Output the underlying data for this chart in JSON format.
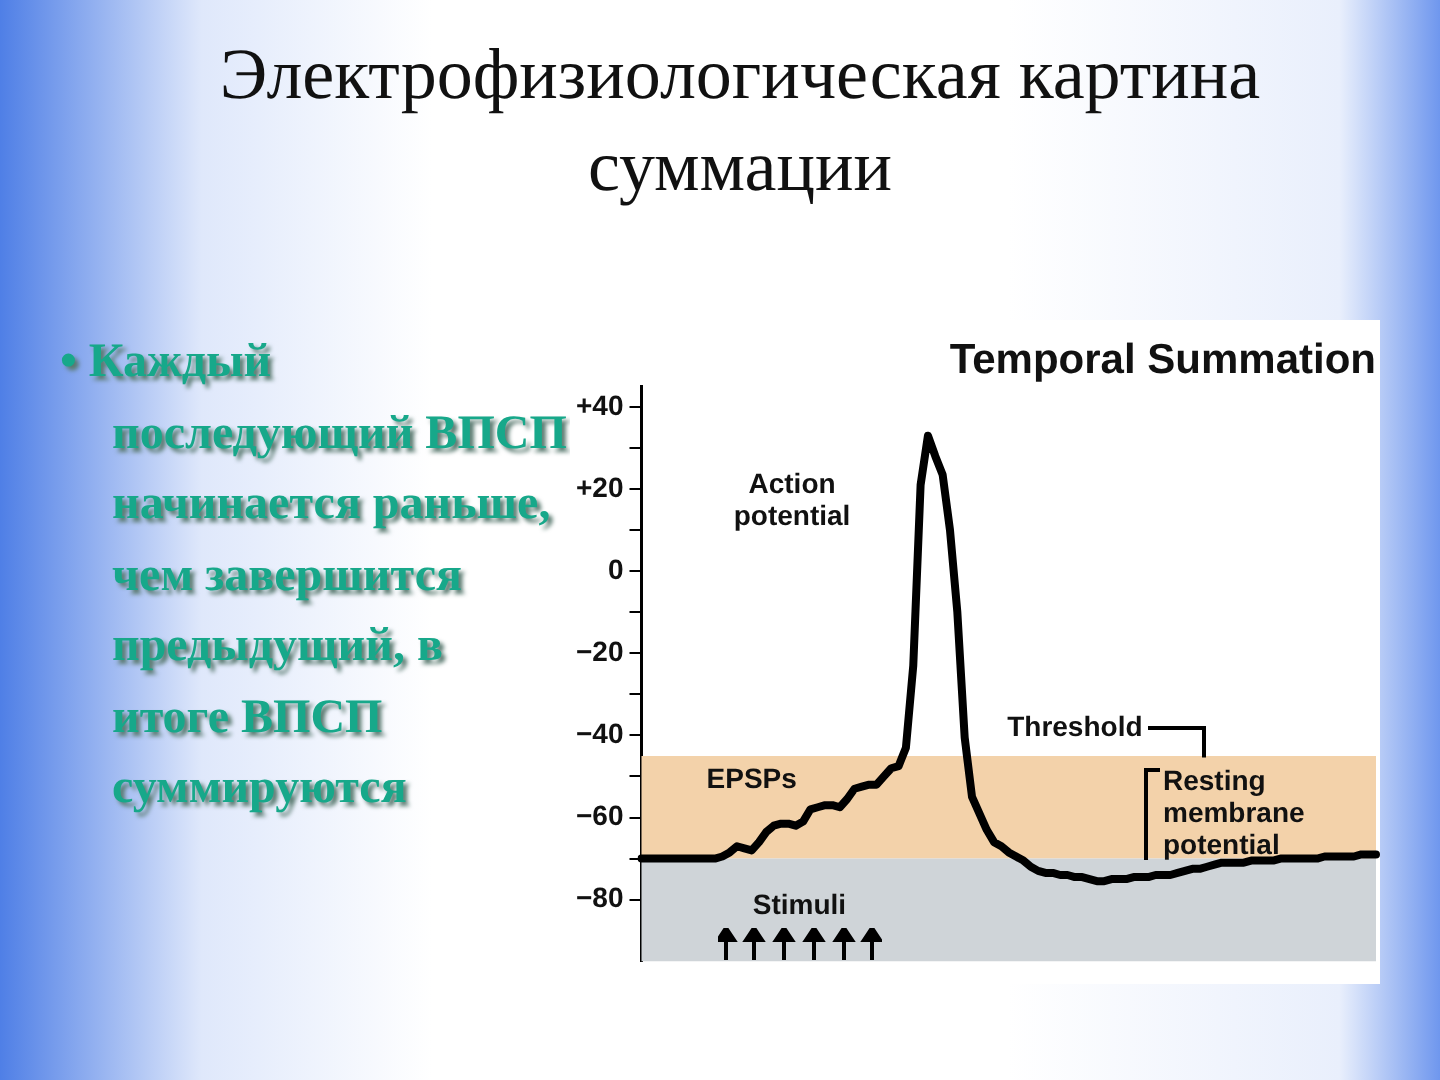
{
  "chart_data": {
    "type": "line",
    "title": "Электрофизиологическая картина суммации",
    "subtitle": "Temporal Summation",
    "categories": [
      null,
      null,
      null,
      null,
      null,
      null,
      null,
      null,
      null,
      null,
      null,
      null,
      null,
      null,
      null,
      null,
      null,
      null,
      null,
      null,
      null,
      null,
      null,
      null,
      null,
      null,
      null,
      null,
      null,
      null,
      null,
      null,
      null,
      null,
      null,
      null,
      null,
      null,
      null,
      null,
      null,
      null,
      null,
      null,
      null,
      null,
      null,
      null,
      null,
      null,
      null,
      null,
      null,
      null,
      null,
      null,
      null,
      null,
      null,
      null,
      null,
      null,
      null,
      null,
      null,
      null,
      null,
      null,
      null,
      null,
      null,
      null,
      null,
      null,
      null,
      null,
      null,
      null,
      null,
      null,
      null,
      null,
      null,
      null,
      null,
      null,
      null,
      null,
      null,
      null,
      null,
      null,
      null,
      null,
      null,
      null,
      null,
      null,
      null,
      null,
      null
    ],
    "series": [
      {
        "color": "#000000",
        "values": [
          -70,
          -70,
          -70,
          -70,
          -70,
          -70,
          -70,
          -70,
          -70,
          -70,
          -70,
          -69.5,
          -68.5,
          -67,
          -67.5,
          -68,
          -66,
          -63.5,
          -62,
          -61.5,
          -61.5,
          -62,
          -61,
          -58,
          -57.5,
          -57,
          -57,
          -57.5,
          -55.5,
          -53,
          -52.5,
          -52,
          -52,
          -50,
          -48,
          -47.5,
          -43,
          -23,
          21,
          33,
          28,
          23.5,
          10,
          -10,
          -40.5,
          -55,
          -59,
          -63,
          -66,
          -67,
          -68.5,
          -69.5,
          -70.5,
          -72,
          -73,
          -73.5,
          -73.5,
          -74,
          -74,
          -74.5,
          -74.5,
          -75,
          -75.5,
          -75.5,
          -75,
          -75,
          -75,
          -74.5,
          -74.5,
          -74.5,
          -74,
          -74,
          -74,
          -73.5,
          -73,
          -72.5,
          -72.5,
          -72,
          -71.5,
          -71,
          -71,
          -71,
          -71,
          -70.5,
          -70.5,
          -70.5,
          -70.5,
          -70,
          -70,
          -70,
          -70,
          -70,
          -70,
          -69.5,
          -69.5,
          -69.5,
          -69.5,
          -69.5,
          -69,
          -69,
          -69
        ]
      }
    ],
    "ylim": [
      -95,
      45
    ],
    "yticks": [
      {
        "value": 40,
        "label": "+40"
      },
      {
        "value": 30,
        "label": null
      },
      {
        "value": 20,
        "label": "+20"
      },
      {
        "value": 10,
        "label": null
      },
      0,
      {
        "value": -10,
        "label": null
      },
      {
        "value": -20,
        "label": "−20"
      },
      {
        "value": -30,
        "label": null
      },
      {
        "value": -40,
        "label": "−40"
      },
      {
        "value": -50,
        "label": null
      },
      {
        "value": -60,
        "label": "−60"
      },
      {
        "value": -70,
        "label": null
      },
      {
        "value": -80,
        "label": "−80"
      }
    ],
    "bands": [
      {
        "axis": "y",
        "from": -70,
        "to": -45,
        "color": "#f3d2aa"
      },
      {
        "axis": "y",
        "from": -95,
        "to": -70,
        "color": "#cfd4d8"
      }
    ],
    "annotations": [
      "• Каждый последующий ВПСП начинается раньше, чем завершится предыдущий, в итоге ВПСП суммируются",
      "Action potential",
      "EPSPs",
      "Stimuli",
      "Threshold",
      "Resting membrane potential"
    ],
    "tick_labels": "y",
    "grid": false,
    "legend": false,
    "marker": "none",
    "line_style": "solid"
  }
}
